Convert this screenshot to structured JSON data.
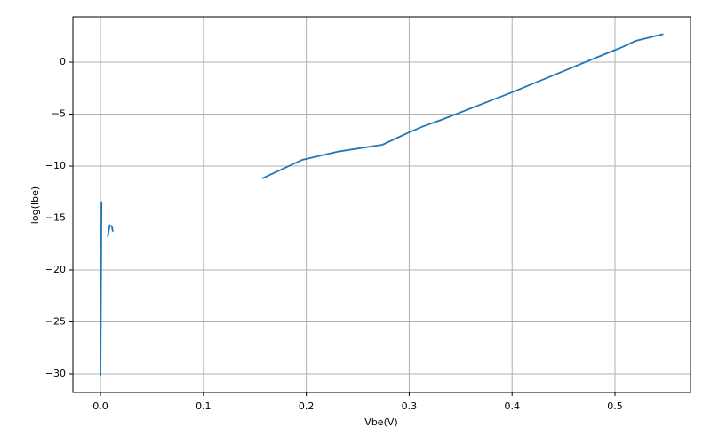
{
  "chart_data": {
    "type": "line",
    "xlabel": "Vbe(V)",
    "ylabel": "log(Ibe)",
    "x": [
      0.001,
      0.0,
      null,
      0.007,
      0.009,
      0.011,
      0.012,
      null,
      0.157,
      0.196,
      0.231,
      0.274,
      0.3,
      0.313,
      0.33,
      0.4,
      0.49,
      0.507,
      0.52,
      0.547
    ],
    "series": [
      {
        "name": "Ibe",
        "color": "#1f77b4",
        "values": [
          -13.4,
          -30.2,
          null,
          -16.8,
          -15.7,
          -15.8,
          -16.3,
          null,
          -11.2,
          -9.4,
          -8.6,
          -7.95,
          -6.75,
          -6.2,
          -5.6,
          -2.9,
          0.77,
          1.45,
          2.05,
          2.7
        ]
      }
    ],
    "xlim": [
      -0.0268,
      0.5734
    ],
    "xticks": [
      {
        "value": 0.0,
        "label": "0.0"
      },
      0.1,
      0.2,
      0.3,
      0.4,
      0.5
    ],
    "ylim": [
      -31.8,
      4.36
    ],
    "yticks": [
      {
        "value": -30,
        "label": "−30"
      },
      {
        "value": -25,
        "label": "−25"
      },
      {
        "value": -20,
        "label": "−20"
      },
      {
        "value": -15,
        "label": "−15"
      },
      {
        "value": -10,
        "label": "−10"
      },
      {
        "value": -5,
        "label": "−5"
      },
      0
    ],
    "grid": true
  }
}
